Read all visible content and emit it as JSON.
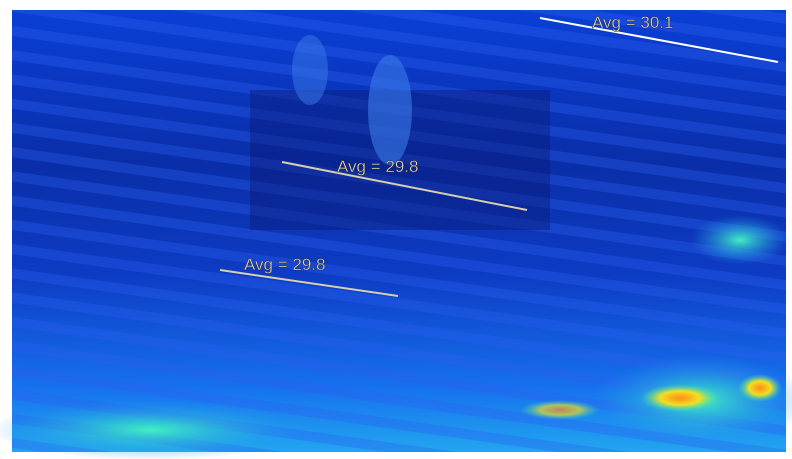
{
  "annotations": [
    {
      "label": "Avg = 30.1"
    },
    {
      "label": "Avg = 29.8"
    },
    {
      "label": "Avg = 29.8"
    }
  ]
}
